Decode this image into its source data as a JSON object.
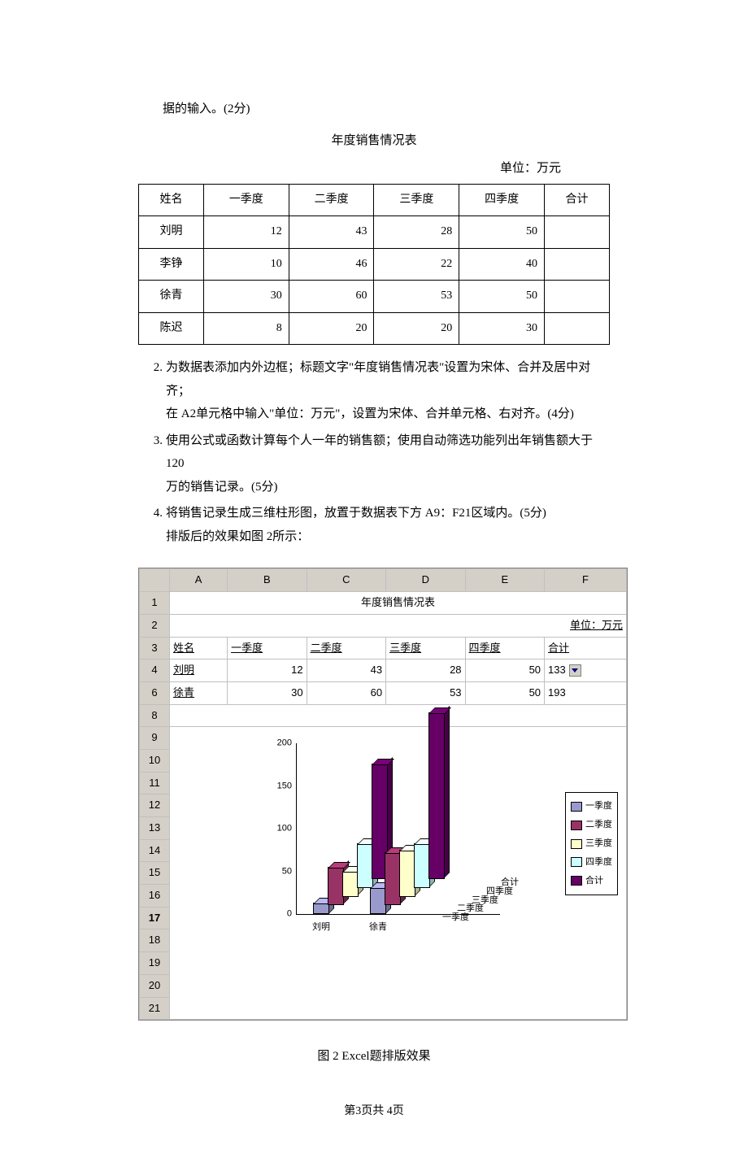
{
  "intro_line": "据的输入。(2分)",
  "table_title": "年度销售情况表",
  "unit_label": "单位：万元",
  "data_table": {
    "headers": [
      "姓名",
      "一季度",
      "二季度",
      "三季度",
      "四季度",
      "合计"
    ],
    "rows": [
      {
        "name": "刘明",
        "q1": 12,
        "q2": 43,
        "q3": 28,
        "q4": 50,
        "sum": ""
      },
      {
        "name": "李铮",
        "q1": 10,
        "q2": 46,
        "q3": 22,
        "q4": 40,
        "sum": ""
      },
      {
        "name": "徐青",
        "q1": 30,
        "q2": 60,
        "q3": 53,
        "q4": 50,
        "sum": ""
      },
      {
        "name": "陈迟",
        "q1": 8,
        "q2": 20,
        "q3": 20,
        "q4": 30,
        "sum": ""
      }
    ]
  },
  "items": {
    "i2_a": "为数据表添加内外边框；标题文字\"年度销售情况表\"设置为宋体、合并及居中对齐；",
    "i2_b": "在 A2单元格中输入\"单位：万元\"，设置为宋体、合并单元格、右对齐。(4分)",
    "i3_a": "使用公式或函数计算每个人一年的销售额；使用自动筛选功能列出年销售额大于 120",
    "i3_b": "万的销售记录。(5分)",
    "i4_a": "将销售记录生成三维柱形图，放置于数据表下方 A9：F21区域内。(5分)",
    "i4_b": "排版后的效果如图 2所示："
  },
  "excel": {
    "cols": [
      "A",
      "B",
      "C",
      "D",
      "E",
      "F"
    ],
    "row1_title": "年度销售情况表",
    "row2_unit": "单位：万元",
    "row3": [
      "姓名",
      "一季度",
      "二季度",
      "三季度",
      "四季度",
      "合计"
    ],
    "row4": [
      "刘明",
      "12",
      "43",
      "28",
      "50",
      "133"
    ],
    "row6": [
      "徐青",
      "30",
      "60",
      "53",
      "50",
      "193"
    ],
    "blank_rows": [
      "8",
      "9",
      "10",
      "11",
      "12",
      "13",
      "14",
      "15",
      "16",
      "17",
      "18",
      "19",
      "20",
      "21"
    ]
  },
  "chart": {
    "type": "3d_bar",
    "y_ticks": [
      0,
      50,
      100,
      150,
      200
    ],
    "ymax": 200,
    "categories": [
      "刘明",
      "徐青"
    ],
    "depth_series": [
      "一季度",
      "二季度",
      "三季度",
      "四季度",
      "合计"
    ],
    "colors": {
      "一季度": "#9999cc",
      "二季度": "#993366",
      "三季度": "#ffffcc",
      "四季度": "#ccffff",
      "合计": "#660066"
    },
    "legend_border": "#000000",
    "background": "#ffffff",
    "axis_color": "#000000",
    "data": {
      "刘明": {
        "一季度": 12,
        "二季度": 43,
        "三季度": 28,
        "四季度": 50,
        "合计": 133
      },
      "徐青": {
        "一季度": 30,
        "二季度": 60,
        "三季度": 53,
        "四季度": 50,
        "合计": 193
      }
    }
  },
  "fig_caption": "图 2 Excel题排版效果",
  "page_number": "第3页共 4页"
}
